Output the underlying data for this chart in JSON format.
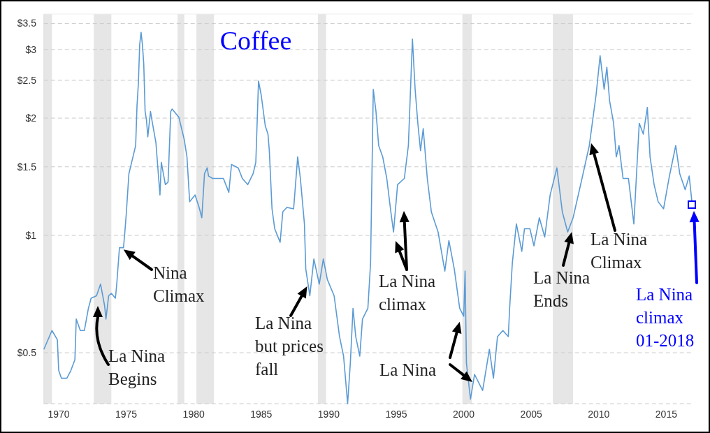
{
  "chart_data": {
    "type": "line",
    "title": "Coffee",
    "log": true,
    "grid": "y",
    "xlim": [
      1968.9,
      2017.0
    ],
    "xticks": [
      1970,
      1975,
      1980,
      1985,
      1990,
      1995,
      2000,
      2005,
      2010,
      2015
    ],
    "ylim": [
      0.37,
      3.7
    ],
    "yticks": [
      {
        "value": 0.5,
        "label": "$0.5"
      },
      {
        "value": 1,
        "label": "$1"
      },
      {
        "value": 1.5,
        "label": "$1.5"
      },
      {
        "value": 2,
        "label": "$2"
      },
      {
        "value": 2.5,
        "label": "$2.5"
      },
      {
        "value": 3,
        "label": "$3"
      },
      {
        "value": 3.5,
        "label": "$3.5"
      }
    ],
    "bands": [
      {
        "axis": "x",
        "from": 1968.9,
        "to": 1969.5,
        "color": "#e6e6e6"
      },
      {
        "axis": "x",
        "from": 1972.6,
        "to": 1973.9,
        "color": "#e6e6e6"
      },
      {
        "axis": "x",
        "from": 1978.8,
        "to": 1979.3,
        "color": "#e6e6e6"
      },
      {
        "axis": "x",
        "from": 1980.2,
        "to": 1981.5,
        "color": "#e6e6e6"
      },
      {
        "axis": "x",
        "from": 1989.2,
        "to": 1989.8,
        "color": "#e6e6e6"
      },
      {
        "axis": "x",
        "from": 1999.9,
        "to": 2000.6,
        "color": "#e6e6e6"
      },
      {
        "axis": "x",
        "from": 2006.6,
        "to": 2008.1,
        "color": "#e6e6e6"
      }
    ],
    "series": [
      {
        "color": "#5b9bd5",
        "x": [
          1968.9,
          1969.5,
          1969.9,
          1970.0,
          1970.2,
          1970.6,
          1970.9,
          1971.2,
          1971.3,
          1971.6,
          1971.9,
          1972.2,
          1972.4,
          1972.8,
          1973.1,
          1973.4,
          1973.5,
          1973.7,
          1973.9,
          1974.2,
          1974.3,
          1974.5,
          1974.8,
          1974.9,
          1975.0,
          1975.2,
          1975.5,
          1975.7,
          1975.8,
          1975.9,
          1976.0,
          1976.1,
          1976.2,
          1976.3,
          1976.4,
          1976.5,
          1976.6,
          1976.8,
          1976.9,
          1977.2,
          1977.5,
          1977.6,
          1977.9,
          1978.1,
          1978.3,
          1978.4,
          1978.9,
          1979.3,
          1979.5,
          1979.7,
          1980.1,
          1980.4,
          1980.6,
          1980.8,
          1981.0,
          1981.1,
          1981.4,
          1982.2,
          1982.6,
          1982.8,
          1983.3,
          1983.6,
          1984.0,
          1984.4,
          1984.6,
          1984.8,
          1985.0,
          1985.3,
          1985.5,
          1985.6,
          1985.8,
          1986.0,
          1986.4,
          1986.6,
          1986.9,
          1987.4,
          1987.7,
          1987.9,
          1988.2,
          1988.3,
          1988.6,
          1988.9,
          1989.3,
          1989.6,
          1989.9,
          1990.4,
          1990.8,
          1991.1,
          1991.4,
          1991.6,
          1991.8,
          1992.0,
          1992.3,
          1992.5,
          1992.9,
          1993.1,
          1993.3,
          1993.5,
          1993.7,
          1994.0,
          1994.3,
          1994.6,
          1994.8,
          1995.1,
          1995.6,
          1995.9,
          1996.2,
          1996.4,
          1996.6,
          1996.8,
          1997.0,
          1997.3,
          1997.6,
          1998.1,
          1998.6,
          1998.9,
          1999.3,
          1999.7,
          2000.0,
          2000.1,
          2000.2,
          2000.5,
          2000.8,
          2001.4,
          2001.9,
          2002.2,
          2002.5,
          2002.9,
          2003.3,
          2003.4,
          2003.6,
          2003.9,
          2004.3,
          2004.5,
          2004.9,
          2005.2,
          2005.6,
          2006.0,
          2006.4,
          2006.9,
          2007.3,
          2007.7,
          2008.1,
          2008.7,
          2009.3,
          2009.8,
          2010.1,
          2010.4,
          2010.6,
          2010.8,
          2011.1,
          2011.3,
          2011.5,
          2011.8,
          2012.2,
          2012.6,
          2013.0,
          2013.3,
          2013.6,
          2013.8,
          2014.1,
          2014.4,
          2014.8,
          2015.2,
          2015.7,
          2016.0,
          2016.4,
          2016.7,
          2016.9
        ],
        "values": [
          0.51,
          0.57,
          0.54,
          0.45,
          0.43,
          0.43,
          0.45,
          0.48,
          0.61,
          0.57,
          0.57,
          0.65,
          0.69,
          0.7,
          0.75,
          0.66,
          0.61,
          0.7,
          0.71,
          0.69,
          0.75,
          0.93,
          0.93,
          1.02,
          1.13,
          1.44,
          1.59,
          1.7,
          2.15,
          2.45,
          3.09,
          3.32,
          3.09,
          2.75,
          2.08,
          1.98,
          1.79,
          2.08,
          1.98,
          1.73,
          1.27,
          1.54,
          1.35,
          1.37,
          2.08,
          2.11,
          2.01,
          1.76,
          1.59,
          1.22,
          1.27,
          1.18,
          1.11,
          1.44,
          1.49,
          1.42,
          1.4,
          1.4,
          1.29,
          1.52,
          1.49,
          1.4,
          1.35,
          1.44,
          1.54,
          2.49,
          2.29,
          1.91,
          1.82,
          1.65,
          1.17,
          1.04,
          0.96,
          1.15,
          1.18,
          1.17,
          1.59,
          1.4,
          1.07,
          0.82,
          0.7,
          0.87,
          0.75,
          0.87,
          0.77,
          0.7,
          0.55,
          0.49,
          0.37,
          0.47,
          0.65,
          0.55,
          0.49,
          0.61,
          0.65,
          0.85,
          2.37,
          2.08,
          1.7,
          1.59,
          1.4,
          1.15,
          1.02,
          1.35,
          1.4,
          1.7,
          3.19,
          2.37,
          1.94,
          1.65,
          1.88,
          1.4,
          1.15,
          1.02,
          0.81,
          0.97,
          0.82,
          0.65,
          0.62,
          0.81,
          0.47,
          0.38,
          0.44,
          0.4,
          0.51,
          0.43,
          0.55,
          0.57,
          0.55,
          0.65,
          0.85,
          1.07,
          0.91,
          1.04,
          1.04,
          0.94,
          1.11,
          0.99,
          1.27,
          1.49,
          1.15,
          1.02,
          1.11,
          1.37,
          1.7,
          2.29,
          2.89,
          2.37,
          2.7,
          2.22,
          1.94,
          1.59,
          1.7,
          1.4,
          1.4,
          1.07,
          1.94,
          1.82,
          2.13,
          1.59,
          1.35,
          1.22,
          1.17,
          1.4,
          1.7,
          1.44,
          1.31,
          1.42,
          1.22
        ]
      }
    ],
    "annotations": [
      "La Nina Begins",
      {
        "text": "Nina Climax",
        "x": 1974.8,
        "y": 0.92
      },
      {
        "text": "La Nina but prices fall",
        "x": 1988.4,
        "y": 0.74
      },
      "La Nina climax",
      {
        "text": "La Nina",
        "x": 1999.7,
        "y": 0.6
      },
      {
        "text": "La Nina Ends",
        "x": 2008.0,
        "y": 1.02
      },
      "La Nina Climax",
      "La Nina climax 01-2018"
    ]
  }
}
